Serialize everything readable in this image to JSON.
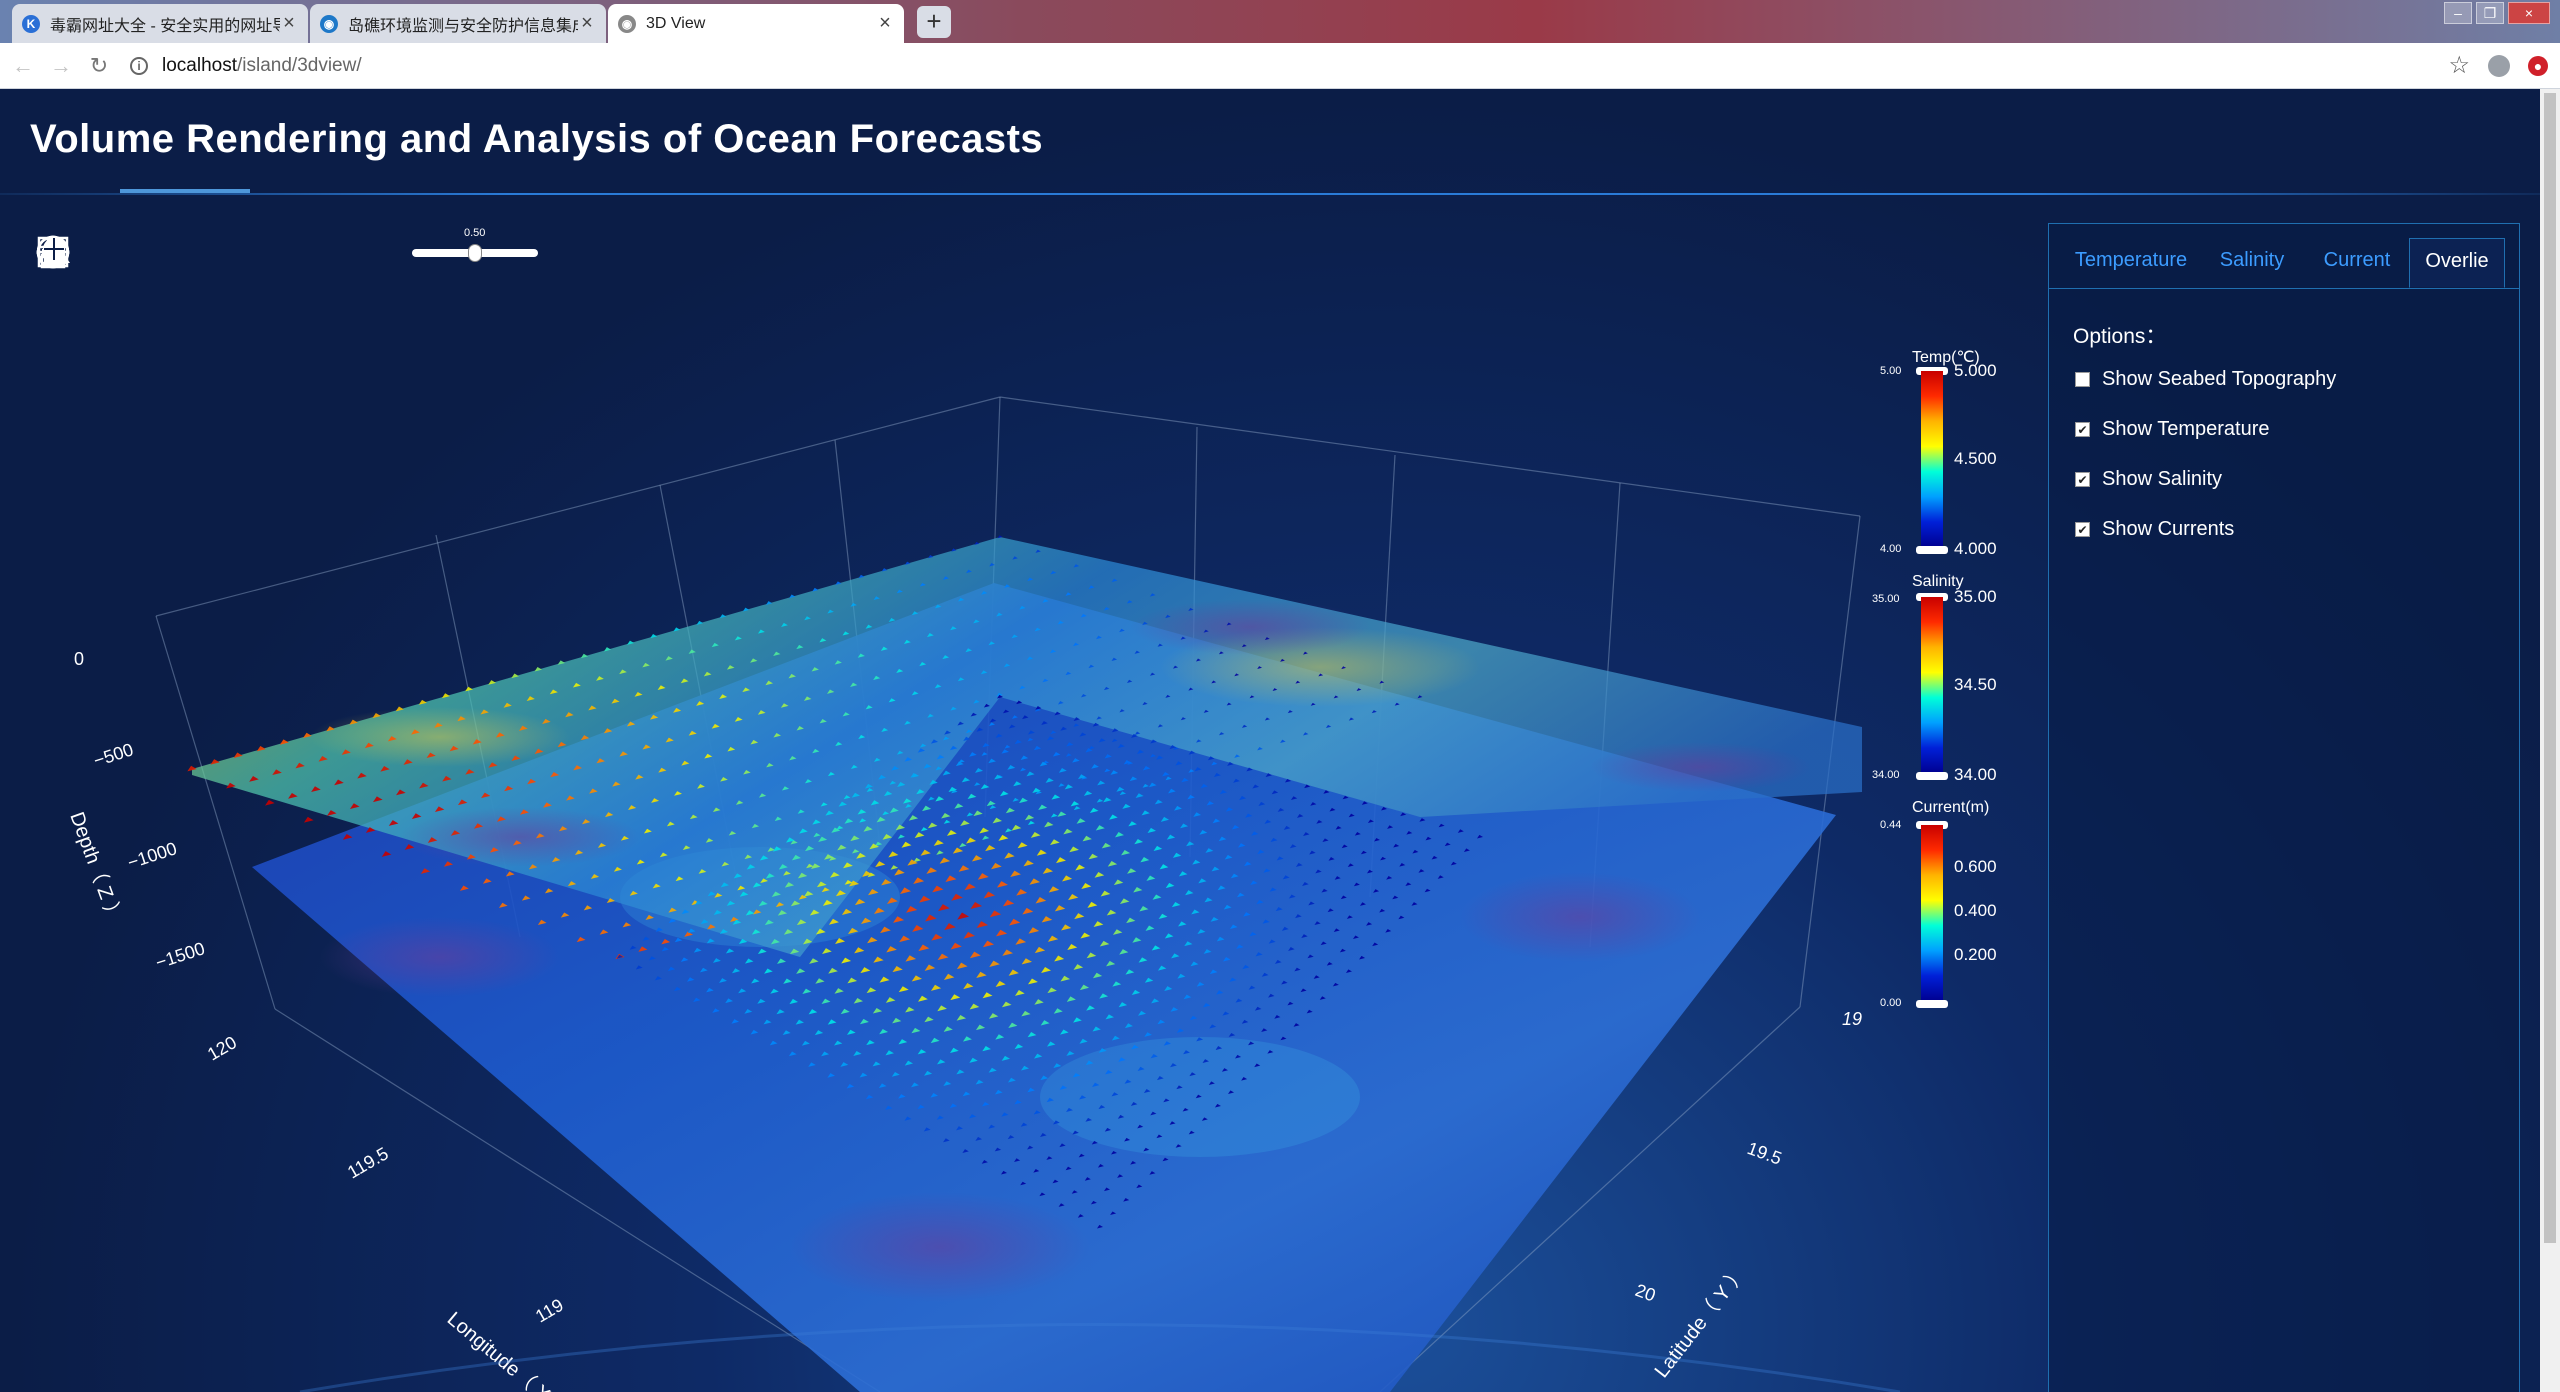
{
  "browser": {
    "tabs": [
      {
        "label": "毒霸网址大全 - 安全实用的网址导航",
        "active": false,
        "favicon": "k-icon"
      },
      {
        "label": "岛礁环境监测与安全防护信息集成",
        "active": false,
        "favicon": "globe-blue-icon"
      },
      {
        "label": "3D View",
        "active": true,
        "favicon": "globe-grey-icon"
      }
    ],
    "new_tab_label": "+",
    "url_host": "localhost",
    "url_path": "/island/3dview/"
  },
  "app": {
    "title": "Volume Rendering and Analysis of Ocean Forecasts"
  },
  "toolbar": {
    "tools": [
      {
        "name": "longitude-slice-icon"
      },
      {
        "name": "latitude-slice-icon"
      },
      {
        "name": "depth-slice-icon"
      },
      {
        "name": "compass-icon"
      },
      {
        "name": "clear-icon"
      },
      {
        "name": "brush-icon"
      },
      {
        "name": "hand-icon"
      },
      {
        "name": "rotate-globe-icon"
      }
    ],
    "opacity_value": "0.50",
    "opacity_fraction": 0.5
  },
  "axes": {
    "depth_label": "Depth（ Z ）",
    "depth_ticks": [
      "0",
      "−500",
      "−1000",
      "−1500"
    ],
    "longitude_label": "Longitude（ X ）",
    "longitude_ticks": [
      "120",
      "119.5",
      "119"
    ],
    "latitude_label": "Latitude（ Y ）",
    "latitude_ticks": [
      "19",
      "19.5",
      "20"
    ]
  },
  "legends": {
    "temp": {
      "title": "Temp(℃)",
      "max_small": "5.00",
      "min_small": "4.00",
      "ticks": [
        "5.000",
        "4.500",
        "4.000"
      ]
    },
    "salinity": {
      "title": "Salinity",
      "max_small": "35.00",
      "min_small": "34.00",
      "ticks": [
        "35.00",
        "34.50",
        "34.00"
      ]
    },
    "current": {
      "title": "Current(m)",
      "max_small": "0.44",
      "min_small": "0.00",
      "ticks": [
        "0.600",
        "0.400",
        "0.200"
      ]
    }
  },
  "panel": {
    "tabs": [
      {
        "label": "Temperature",
        "active": false
      },
      {
        "label": "Salinity",
        "active": false
      },
      {
        "label": "Current",
        "active": false
      },
      {
        "label": "Overlie",
        "active": true
      }
    ],
    "options_title": "Options：",
    "options": [
      {
        "label": "Show Seabed Topography",
        "checked": false
      },
      {
        "label": "Show Temperature",
        "checked": true
      },
      {
        "label": "Show Salinity",
        "checked": true
      },
      {
        "label": "Show Currents",
        "checked": true
      }
    ]
  },
  "colors": {
    "accent": "#3c9cff",
    "background": "#0b1d47",
    "jet": [
      "#00007f",
      "#0000ff",
      "#00ffff",
      "#ffff00",
      "#ff0000",
      "#7f0000"
    ]
  }
}
